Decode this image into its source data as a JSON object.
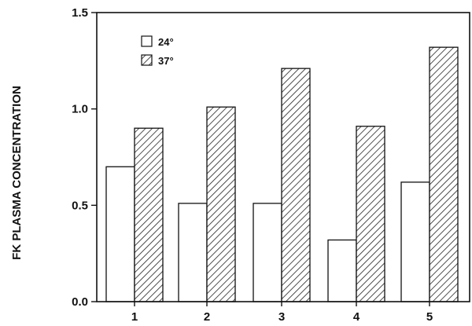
{
  "chart_data": {
    "type": "bar",
    "categories": [
      "1",
      "2",
      "3",
      "4",
      "5"
    ],
    "series": [
      {
        "name": "24°",
        "values": [
          0.7,
          0.51,
          0.51,
          0.32,
          0.62
        ],
        "pattern": "none",
        "color": "#ffffff"
      },
      {
        "name": "37°",
        "values": [
          0.9,
          1.01,
          1.21,
          0.91,
          1.32
        ],
        "pattern": "hatched",
        "color": "#ffffff"
      }
    ],
    "title": "",
    "xlabel": "",
    "ylabel": "FK PLASMA CONCENTRATION",
    "ylim": [
      0.0,
      1.5
    ],
    "yticks": [
      "0.0",
      "0.5",
      "1.0",
      "1.5"
    ],
    "grid": false,
    "legend_position": "top-left"
  }
}
